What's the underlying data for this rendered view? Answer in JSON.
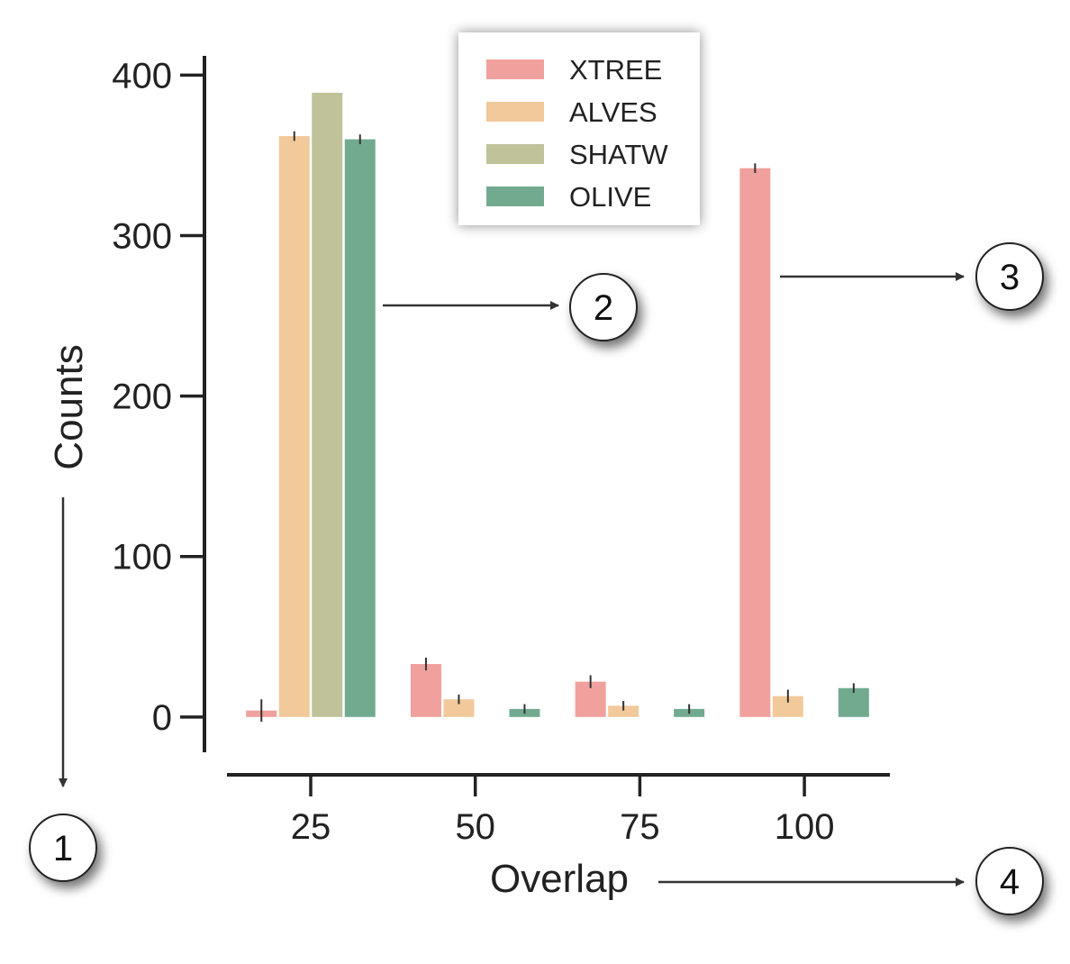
{
  "chart_data": {
    "type": "bar",
    "title": "",
    "xlabel": "Overlap",
    "ylabel": "Counts",
    "ylim": [
      -22,
      412
    ],
    "yticks": [
      0,
      100,
      200,
      300,
      400
    ],
    "categories": [
      "25",
      "50",
      "75",
      "100"
    ],
    "series": [
      {
        "name": "XTREE",
        "color": "#f0a19d",
        "values": [
          4,
          33,
          22,
          342
        ],
        "errors": [
          7,
          4,
          4,
          3
        ]
      },
      {
        "name": "ALVES",
        "color": "#f2c99b",
        "values": [
          362,
          11,
          7,
          13
        ],
        "errors": [
          3,
          3,
          3,
          4
        ]
      },
      {
        "name": "SHATW",
        "color": "#c0c29a",
        "values": [
          389,
          0,
          0,
          0
        ],
        "errors": [
          0,
          0,
          0,
          0
        ]
      },
      {
        "name": "OLIVE",
        "color": "#72aa90",
        "values": [
          360,
          5,
          5,
          18
        ],
        "errors": [
          3,
          3,
          3,
          3
        ]
      }
    ],
    "legend_position": "top-center",
    "grid": false
  },
  "annotations": {
    "markers": [
      "1",
      "2",
      "3",
      "4"
    ]
  }
}
